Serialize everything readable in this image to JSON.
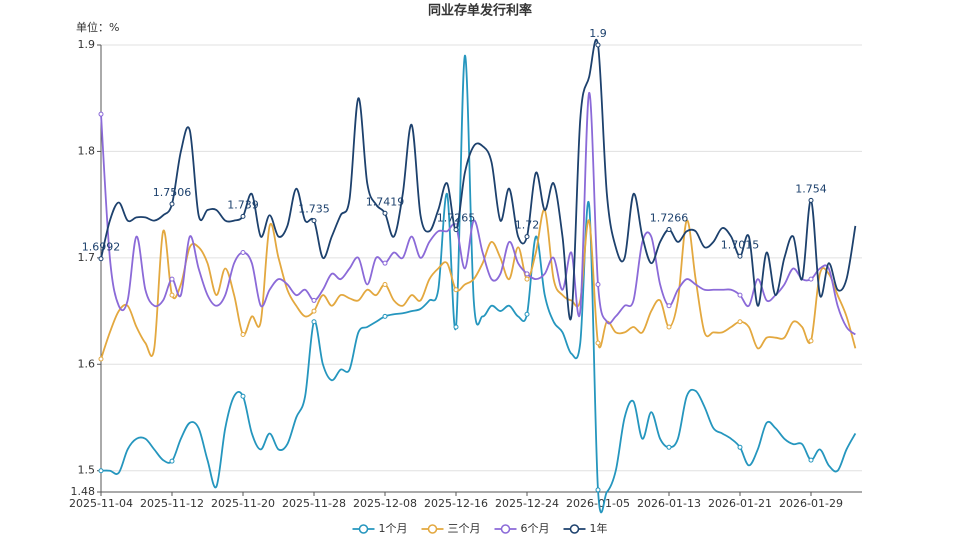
{
  "chart_data": {
    "type": "line",
    "title": "同业存单发行利率",
    "y_label": "单位：%",
    "categories": [
      "2025-11-04",
      null,
      null,
      null,
      null,
      null,
      null,
      null,
      "2025-11-12",
      null,
      null,
      null,
      null,
      null,
      null,
      null,
      "2025-11-20",
      null,
      null,
      null,
      null,
      null,
      null,
      null,
      "2025-11-28",
      null,
      null,
      null,
      null,
      null,
      null,
      null,
      "2025-12-08",
      null,
      null,
      null,
      null,
      null,
      null,
      null,
      "2025-12-16",
      null,
      null,
      null,
      null,
      null,
      null,
      null,
      "2025-12-24",
      null,
      null,
      null,
      null,
      null,
      null,
      null,
      "2026-01-05",
      null,
      null,
      null,
      null,
      null,
      null,
      null,
      "2026-01-13",
      null,
      null,
      null,
      null,
      null,
      null,
      null,
      "2026-01-21",
      null,
      null,
      null,
      null,
      null,
      null,
      null,
      "2026-01-29",
      null,
      null,
      null,
      null,
      null
    ],
    "ylim": [
      1.48,
      1.9
    ],
    "yticks": [
      1.48,
      1.5,
      1.6,
      1.7,
      1.8,
      1.9
    ],
    "grid": true,
    "legend": "bottom",
    "marker_every": 8,
    "series": [
      {
        "name": "1个月",
        "color": "#2596be",
        "values": [
          1.5,
          1.5,
          1.498,
          1.52,
          1.53,
          1.53,
          1.52,
          1.51,
          1.509,
          1.53,
          1.545,
          1.54,
          1.51,
          1.485,
          1.54,
          1.57,
          1.57,
          1.535,
          1.52,
          1.535,
          1.52,
          1.525,
          1.55,
          1.57,
          1.64,
          1.6,
          1.585,
          1.595,
          1.595,
          1.63,
          1.635,
          1.64,
          1.645,
          1.647,
          1.648,
          1.65,
          1.652,
          1.66,
          1.67,
          1.76,
          1.635,
          1.89,
          1.66,
          1.645,
          1.655,
          1.65,
          1.655,
          1.645,
          1.647,
          1.72,
          1.665,
          1.64,
          1.63,
          1.61,
          1.62,
          1.75,
          1.482,
          1.48,
          1.5,
          1.55,
          1.565,
          1.53,
          1.555,
          1.53,
          1.522,
          1.53,
          1.57,
          1.575,
          1.56,
          1.54,
          1.535,
          1.53,
          1.522,
          1.505,
          1.52,
          1.545,
          1.54,
          1.53,
          1.525,
          1.525,
          1.51,
          1.52,
          1.505,
          1.5,
          1.52,
          1.535
        ]
      },
      {
        "name": "三个月",
        "color": "#e3a83f",
        "values": [
          1.605,
          1.63,
          1.65,
          1.655,
          1.635,
          1.62,
          1.615,
          1.725,
          1.665,
          1.675,
          1.71,
          1.71,
          1.695,
          1.665,
          1.69,
          1.665,
          1.628,
          1.645,
          1.64,
          1.73,
          1.7,
          1.67,
          1.655,
          1.645,
          1.65,
          1.665,
          1.655,
          1.665,
          1.662,
          1.66,
          1.67,
          1.665,
          1.675,
          1.66,
          1.655,
          1.665,
          1.66,
          1.68,
          1.69,
          1.695,
          1.67,
          1.675,
          1.68,
          1.695,
          1.715,
          1.7,
          1.68,
          1.71,
          1.68,
          1.705,
          1.745,
          1.68,
          1.665,
          1.66,
          1.66,
          1.735,
          1.62,
          1.64,
          1.63,
          1.63,
          1.635,
          1.63,
          1.65,
          1.66,
          1.635,
          1.66,
          1.735,
          1.68,
          1.63,
          1.63,
          1.63,
          1.635,
          1.64,
          1.635,
          1.615,
          1.625,
          1.625,
          1.625,
          1.64,
          1.635,
          1.622,
          1.685,
          1.685,
          1.665,
          1.645,
          1.615
        ]
      },
      {
        "name": "6个月",
        "color": "#8b6ad8",
        "values": [
          1.835,
          1.7,
          1.655,
          1.66,
          1.72,
          1.67,
          1.655,
          1.66,
          1.68,
          1.665,
          1.72,
          1.69,
          1.665,
          1.655,
          1.665,
          1.695,
          1.705,
          1.695,
          1.655,
          1.67,
          1.68,
          1.675,
          1.665,
          1.67,
          1.66,
          1.67,
          1.685,
          1.68,
          1.69,
          1.7,
          1.675,
          1.7,
          1.695,
          1.705,
          1.7,
          1.72,
          1.7,
          1.715,
          1.725,
          1.725,
          1.73,
          1.69,
          1.735,
          1.705,
          1.68,
          1.685,
          1.715,
          1.695,
          1.685,
          1.68,
          1.685,
          1.7,
          1.67,
          1.705,
          1.65,
          1.855,
          1.675,
          1.64,
          1.645,
          1.655,
          1.66,
          1.715,
          1.72,
          1.675,
          1.655,
          1.67,
          1.68,
          1.675,
          1.67,
          1.67,
          1.67,
          1.67,
          1.665,
          1.655,
          1.68,
          1.66,
          1.665,
          1.675,
          1.69,
          1.68,
          1.68,
          1.69,
          1.69,
          1.655,
          1.635,
          1.628
        ]
      },
      {
        "name": "1年",
        "color": "#1d416d",
        "show_labels": true,
        "values": [
          1.6992,
          1.735,
          1.752,
          1.735,
          1.738,
          1.738,
          1.735,
          1.74,
          1.7506,
          1.8,
          1.82,
          1.74,
          1.745,
          1.745,
          1.735,
          1.735,
          1.739,
          1.76,
          1.72,
          1.74,
          1.72,
          1.73,
          1.765,
          1.735,
          1.735,
          1.7,
          1.72,
          1.74,
          1.755,
          1.85,
          1.77,
          1.75,
          1.7419,
          1.72,
          1.76,
          1.825,
          1.74,
          1.725,
          1.745,
          1.77,
          1.7265,
          1.78,
          1.805,
          1.805,
          1.79,
          1.735,
          1.765,
          1.72,
          1.72,
          1.78,
          1.745,
          1.77,
          1.72,
          1.645,
          1.83,
          1.87,
          1.9,
          1.76,
          1.71,
          1.7,
          1.76,
          1.72,
          1.695,
          1.715,
          1.7266,
          1.715,
          1.725,
          1.725,
          1.71,
          1.715,
          1.728,
          1.72,
          1.7015,
          1.72,
          1.655,
          1.705,
          1.665,
          1.7,
          1.72,
          1.68,
          1.754,
          1.665,
          1.695,
          1.67,
          1.68,
          1.73
        ]
      }
    ]
  }
}
